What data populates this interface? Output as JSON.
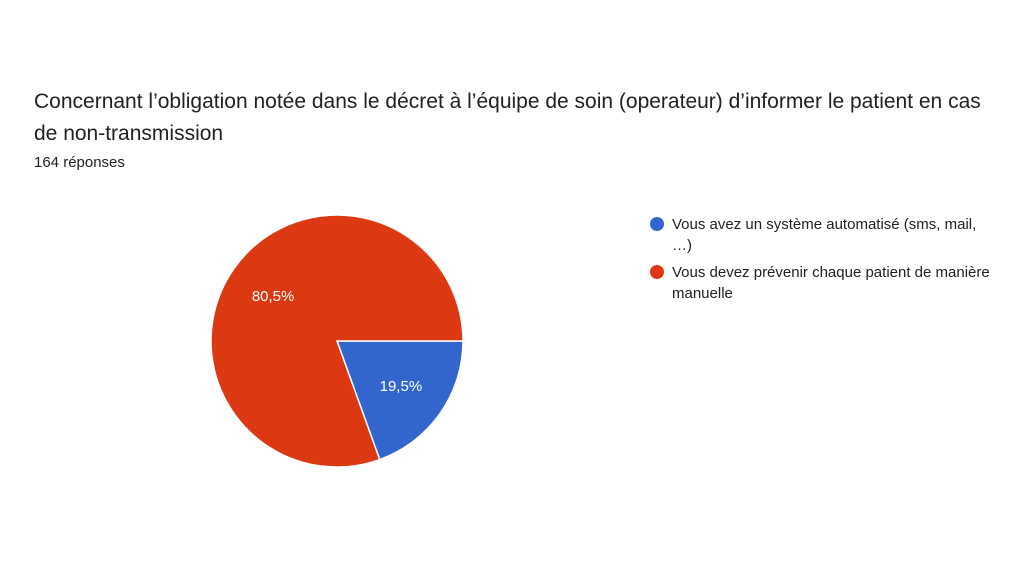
{
  "chart_data": {
    "type": "pie",
    "title": "Concernant l’obligation notée dans le décret à l’équipe de soin (operateur) d’informer le patient en cas de non-transmission",
    "subtitle": "164 réponses",
    "legend_position": "right",
    "slices": [
      {
        "label": "Vous avez un système automatisé (sms, mail, …)",
        "value": 19.5,
        "display": "19,5%",
        "color": "#3366cc"
      },
      {
        "label": "Vous devez prévenir chaque patient de manière manuelle",
        "value": 80.5,
        "display": "80,5%",
        "color": "#dc3912"
      }
    ]
  }
}
